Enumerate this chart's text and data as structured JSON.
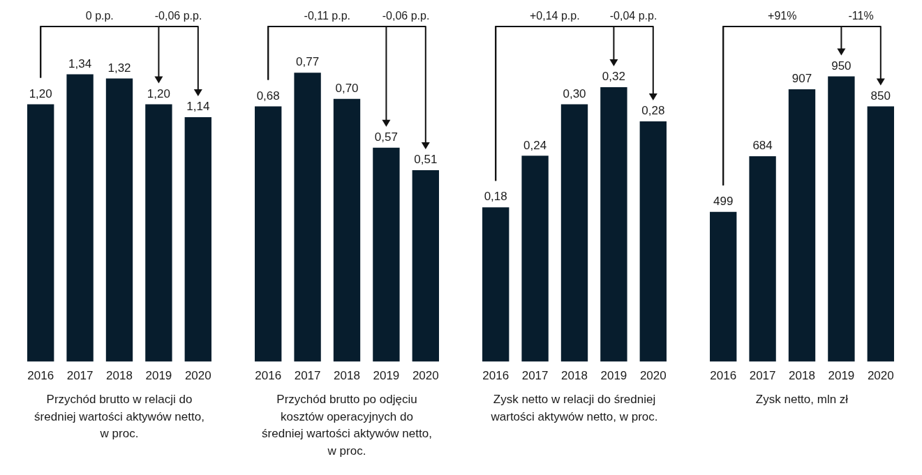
{
  "chart_data": [
    {
      "type": "bar",
      "xlabel": "Przychód brutto w relacji do średniej wartości aktywów netto, w proc.",
      "categories": [
        "2016",
        "2017",
        "2018",
        "2019",
        "2020"
      ],
      "values": [
        1.2,
        1.34,
        1.32,
        1.2,
        1.14
      ],
      "value_labels": [
        "1,20",
        "1,34",
        "1,32",
        "1,20",
        "1,14"
      ],
      "color": "#071d2d",
      "annotations": [
        "0 p.p.",
        "-0,06 p.p."
      ]
    },
    {
      "type": "bar",
      "xlabel": "Przychód brutto po odjęciu kosztów operacyjnych do średniej wartości aktywów netto, w proc.",
      "categories": [
        "2016",
        "2017",
        "2018",
        "2019",
        "2020"
      ],
      "values": [
        0.68,
        0.77,
        0.7,
        0.57,
        0.51
      ],
      "value_labels": [
        "0,68",
        "0,77",
        "0,70",
        "0,57",
        "0,51"
      ],
      "color": "#071d2d",
      "annotations": [
        "-0,11 p.p.",
        "-0,06 p.p."
      ]
    },
    {
      "type": "bar",
      "xlabel": "Zysk netto w relacji do średniej wartości aktywów netto, w proc.",
      "categories": [
        "2016",
        "2017",
        "2018",
        "2019",
        "2020"
      ],
      "values": [
        0.18,
        0.24,
        0.3,
        0.32,
        0.28
      ],
      "value_labels": [
        "0,18",
        "0,24",
        "0,30",
        "0,32",
        "0,28"
      ],
      "color": "#071d2d",
      "annotations": [
        "+0,14 p.p.",
        "-0,04 p.p."
      ]
    },
    {
      "type": "bar",
      "xlabel": "Zysk netto, mln zł",
      "categories": [
        "2016",
        "2017",
        "2018",
        "2019",
        "2020"
      ],
      "values": [
        499,
        684,
        907,
        950,
        850
      ],
      "value_labels": [
        "499",
        "684",
        "907",
        "950",
        "850"
      ],
      "color": "#071d2d",
      "annotations": [
        "+91%",
        "-11%"
      ]
    }
  ]
}
